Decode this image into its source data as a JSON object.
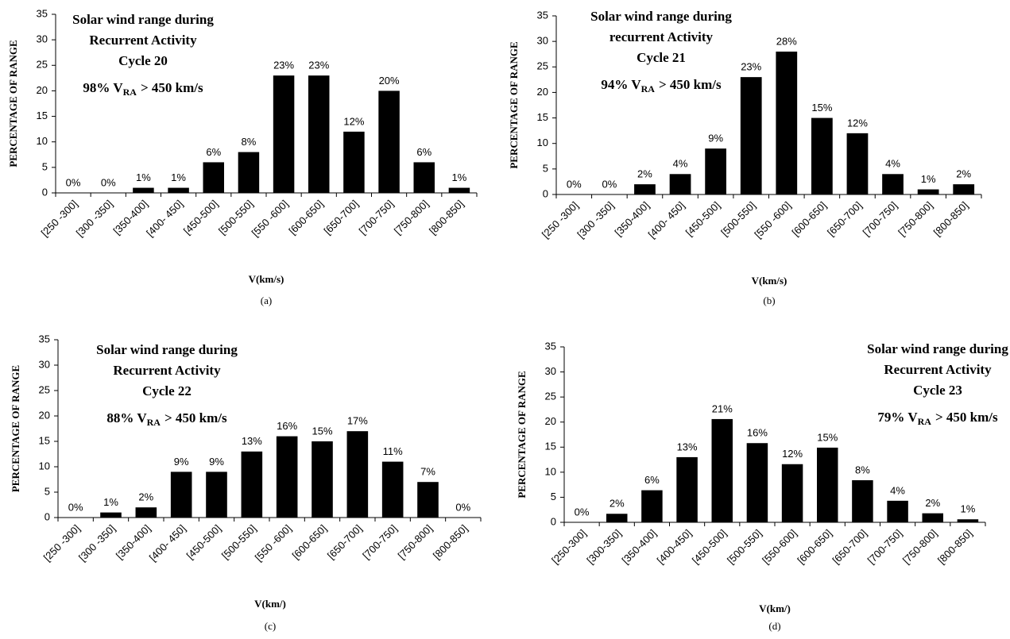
{
  "chart_data": [
    {
      "type": "bar",
      "title_lines": [
        "Solar wind range during",
        "Recurrent Activity",
        "Cycle 20"
      ],
      "note": {
        "prefix": "98% V",
        "subscript": "RA",
        "suffix": "> 450 km/s"
      },
      "caption": "(a)",
      "x_label": "V(km/s)",
      "y_label": "PERCENTAGE OF RANGE",
      "color": "#000000",
      "categories": [
        "[250 -300]",
        "[300 -350]",
        "[350-400]",
        "[400- 450]",
        "[450-500]",
        "[500-550]",
        "[550 -600]",
        "[600-650]",
        "[650-700]",
        "[700-750]",
        "[750-800]",
        "[800-850]"
      ],
      "values": [
        0,
        0,
        1,
        1,
        6,
        8,
        23,
        23,
        12,
        20,
        6,
        1
      ],
      "value_labels": [
        "0%",
        "0%",
        "1%",
        "1%",
        "6%",
        "8%",
        "23%",
        "23%",
        "12%",
        "20%",
        "6%",
        "1%"
      ],
      "ylim": [
        0,
        35
      ],
      "yticks": [
        0,
        5,
        10,
        15,
        20,
        25,
        30,
        35
      ]
    },
    {
      "type": "bar",
      "title_lines": [
        "Solar wind range during",
        "recurrent Activity",
        "Cycle 21"
      ],
      "note": {
        "prefix": "94% V",
        "subscript": "RA",
        "suffix": "> 450 km/s"
      },
      "caption": "(b)",
      "x_label": "V(km/s)",
      "y_label": "PERCENTAGE OF RANGE",
      "color": "#000000",
      "categories": [
        "[250 -300]",
        "[300 -350]",
        "[350-400]",
        "[400- 450]",
        "[450-500]",
        "[500-550]",
        "[550 -600]",
        "[600-650]",
        "[650-700]",
        "[700-750]",
        "[750-800]",
        "[800-850]"
      ],
      "values": [
        0,
        0,
        2,
        4,
        9,
        23,
        28,
        15,
        12,
        4,
        1,
        2
      ],
      "value_labels": [
        "0%",
        "0%",
        "2%",
        "4%",
        "9%",
        "23%",
        "28%",
        "15%",
        "12%",
        "4%",
        "1%",
        "2%"
      ],
      "ylim": [
        0,
        35
      ],
      "yticks": [
        0,
        5,
        10,
        15,
        20,
        25,
        30,
        35
      ]
    },
    {
      "type": "bar",
      "title_lines": [
        "Solar wind  range during",
        "Recurrent Activity",
        "Cycle 22"
      ],
      "note": {
        "prefix": "88% V",
        "subscript": "RA",
        "suffix": "> 450 km/s"
      },
      "caption": "(c)",
      "x_label": "V(km/)",
      "y_label": "PERCENTAGE OF RANGE",
      "color": "#000000",
      "categories": [
        "[250 -300]",
        "[300 -350]",
        "[350-400]",
        "[400- 450]",
        "[450-500]",
        "[500-550]",
        "[550 -600]",
        "[600-650]",
        "[650-700]",
        "[700-750]",
        "[750-800]",
        "[800-850]"
      ],
      "values": [
        0,
        1,
        2,
        9,
        9,
        13,
        16,
        15,
        17,
        11,
        7,
        0
      ],
      "value_labels": [
        "0%",
        "1%",
        "2%",
        "9%",
        "9%",
        "13%",
        "16%",
        "15%",
        "17%",
        "11%",
        "7%",
        "0%"
      ],
      "ylim": [
        0,
        35
      ],
      "yticks": [
        0,
        5,
        10,
        15,
        20,
        25,
        30,
        35
      ]
    },
    {
      "type": "bar",
      "title_lines": [
        "Solar wind range during",
        "Recurrent Activity",
        "Cycle 23"
      ],
      "note": {
        "prefix": "79% V",
        "subscript": "RA",
        "suffix": "> 450 km/s"
      },
      "caption": "(d)",
      "x_label": "V(km/)",
      "y_label": "PERCENTAGE OF RANGE",
      "color": "#000000",
      "categories": [
        "[250-300]",
        "[300-350]",
        "[350-400]",
        "[400-450]",
        "[450-500]",
        "[500-550]",
        "[550-600]",
        "[600-650]",
        "[650-700]",
        "[700-750]",
        "[750-800]",
        "[800-850]"
      ],
      "values": [
        0,
        1.7,
        6.4,
        13,
        20.6,
        15.8,
        11.6,
        14.9,
        8.4,
        4.3,
        1.8,
        0.6
      ],
      "value_labels": [
        "0%",
        "2%",
        "6%",
        "13%",
        "21%",
        "16%",
        "12%",
        "15%",
        "8%",
        "4%",
        "2%",
        "1%"
      ],
      "ylim": [
        0,
        35
      ],
      "yticks": [
        0,
        5,
        10,
        15,
        20,
        25,
        30,
        35
      ]
    }
  ]
}
